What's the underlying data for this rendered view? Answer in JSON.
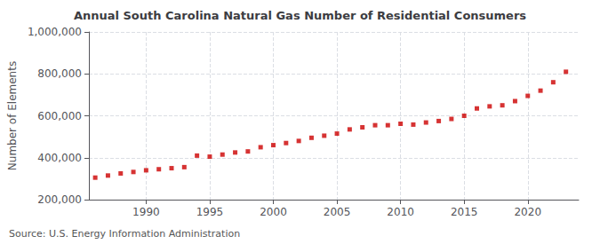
{
  "chart_data": {
    "type": "scatter",
    "title": "Annual South Carolina Natural Gas Number of Residential Consumers",
    "ylabel": "Number of Elements",
    "source": "Source: U.S. Energy Information Administration",
    "x": [
      1986,
      1987,
      1988,
      1989,
      1990,
      1991,
      1992,
      1993,
      1994,
      1995,
      1996,
      1997,
      1998,
      1999,
      2000,
      2001,
      2002,
      2003,
      2004,
      2005,
      2006,
      2007,
      2008,
      2009,
      2010,
      2011,
      2012,
      2013,
      2014,
      2015,
      2016,
      2017,
      2018,
      2019,
      2020,
      2021,
      2022,
      2023
    ],
    "values": [
      305000,
      315000,
      325000,
      332000,
      340000,
      345000,
      350000,
      355000,
      410000,
      405000,
      415000,
      425000,
      430000,
      450000,
      460000,
      470000,
      480000,
      495000,
      505000,
      515000,
      535000,
      545000,
      555000,
      555000,
      562000,
      558000,
      568000,
      575000,
      585000,
      600000,
      635000,
      645000,
      650000,
      670000,
      695000,
      720000,
      760000,
      810000
    ],
    "color": "#cc0000",
    "marker": "square",
    "grid": true,
    "xlim": [
      1985.5,
      2024
    ],
    "xticks": [
      1990,
      1995,
      2000,
      2005,
      2010,
      2015,
      2020
    ],
    "ylim": [
      200000,
      1000000
    ],
    "yticks": [
      {
        "value": 200000,
        "label": "200,000"
      },
      {
        "value": 400000,
        "label": "400,000"
      },
      {
        "value": 600000,
        "label": "600,000"
      },
      {
        "value": 800000,
        "label": "800,000"
      },
      {
        "value": 1000000,
        "label": "1,000,000"
      }
    ]
  }
}
